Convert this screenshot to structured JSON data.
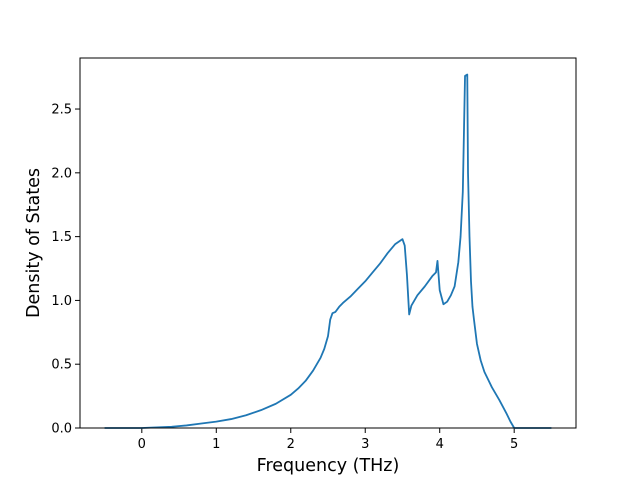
{
  "chart_data": {
    "type": "line",
    "xlabel": "Frequency (THz)",
    "ylabel": "Density of States",
    "xlim": [
      -0.83,
      5.83
    ],
    "ylim": [
      0,
      2.9
    ],
    "xticks": [
      0,
      1,
      2,
      3,
      4,
      5
    ],
    "yticks": [
      0.0,
      0.5,
      1.0,
      1.5,
      2.0,
      2.5
    ],
    "xtick_labels": [
      "0",
      "1",
      "2",
      "3",
      "4",
      "5"
    ],
    "ytick_labels": [
      "0.0",
      "0.5",
      "1.0",
      "1.5",
      "2.0",
      "2.5"
    ],
    "grid": false,
    "line_color": "#1f77b4",
    "series": [
      {
        "x": [
          -0.5,
          -0.2,
          0.0,
          0.2,
          0.4,
          0.6,
          0.8,
          1.0,
          1.2,
          1.4,
          1.6,
          1.8,
          2.0,
          2.1,
          2.2,
          2.3,
          2.4,
          2.45,
          2.5,
          2.53,
          2.56,
          2.6,
          2.65,
          2.7,
          2.8,
          2.9,
          3.0,
          3.1,
          3.2,
          3.3,
          3.4,
          3.5,
          3.53,
          3.56,
          3.59,
          3.62,
          3.7,
          3.8,
          3.9,
          3.95,
          3.97,
          4.0,
          4.05,
          4.1,
          4.15,
          4.2,
          4.25,
          4.28,
          4.31,
          4.34,
          4.37,
          4.38,
          4.4,
          4.42,
          4.44,
          4.46,
          4.5,
          4.55,
          4.6,
          4.7,
          4.8,
          4.9,
          4.95,
          5.0,
          5.02,
          5.2,
          5.5
        ],
        "y": [
          0.0,
          0.0,
          0.0,
          0.005,
          0.01,
          0.02,
          0.035,
          0.05,
          0.07,
          0.1,
          0.14,
          0.19,
          0.26,
          0.31,
          0.37,
          0.45,
          0.55,
          0.62,
          0.72,
          0.85,
          0.9,
          0.91,
          0.95,
          0.98,
          1.03,
          1.09,
          1.15,
          1.22,
          1.29,
          1.37,
          1.44,
          1.48,
          1.43,
          1.2,
          0.89,
          0.96,
          1.04,
          1.11,
          1.19,
          1.22,
          1.31,
          1.08,
          0.97,
          0.99,
          1.04,
          1.11,
          1.3,
          1.5,
          1.85,
          2.76,
          2.77,
          2.0,
          1.5,
          1.15,
          0.95,
          0.85,
          0.66,
          0.53,
          0.44,
          0.32,
          0.22,
          0.11,
          0.05,
          0.0,
          0.0,
          0.0,
          0.0
        ]
      }
    ]
  }
}
